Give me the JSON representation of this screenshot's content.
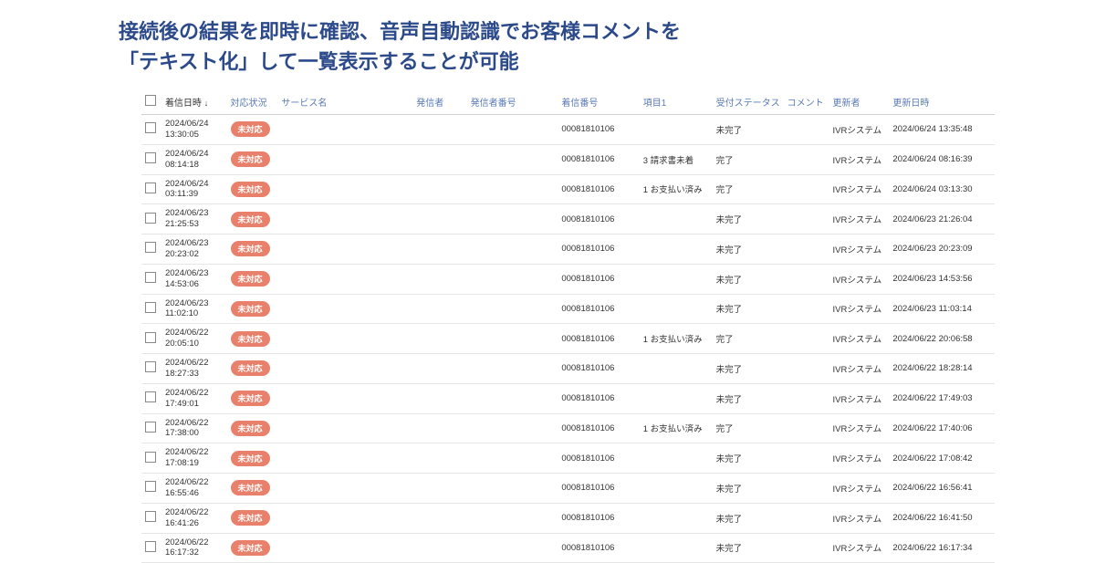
{
  "heading_line1": "接続後の結果を即時に確認、音声自動認識でお客様コメントを",
  "heading_line2": "「テキスト化」して一覧表示することが可能",
  "columns": {
    "received": "着信日時",
    "sort_glyph": "↓",
    "status": "対応状況",
    "service": "サービス名",
    "sender": "発信者",
    "sender_num": "発信者番号",
    "inbound_num": "着信番号",
    "item1": "項目1",
    "reception": "受付ステータス",
    "comment": "コメント",
    "updater": "更新者",
    "updated": "更新日時"
  },
  "badge_label": "未対応",
  "inbound_value": "00081810106",
  "updater_value": "IVRシステム",
  "rows": [
    {
      "dt1": "2024/06/24",
      "dt2": "13:30:05",
      "item1": "",
      "recept": "未完了",
      "upd": "2024/06/24 13:35:48"
    },
    {
      "dt1": "2024/06/24",
      "dt2": "08:14:18",
      "item1": "3 請求書未着",
      "recept": "完了",
      "upd": "2024/06/24 08:16:39"
    },
    {
      "dt1": "2024/06/24",
      "dt2": "03:11:39",
      "item1": "1 お支払い済み",
      "recept": "完了",
      "upd": "2024/06/24 03:13:30"
    },
    {
      "dt1": "2024/06/23",
      "dt2": "21:25:53",
      "item1": "",
      "recept": "未完了",
      "upd": "2024/06/23 21:26:04"
    },
    {
      "dt1": "2024/06/23",
      "dt2": "20:23:02",
      "item1": "",
      "recept": "未完了",
      "upd": "2024/06/23 20:23:09"
    },
    {
      "dt1": "2024/06/23",
      "dt2": "14:53:06",
      "item1": "",
      "recept": "未完了",
      "upd": "2024/06/23 14:53:56"
    },
    {
      "dt1": "2024/06/23",
      "dt2": "11:02:10",
      "item1": "",
      "recept": "未完了",
      "upd": "2024/06/23 11:03:14"
    },
    {
      "dt1": "2024/06/22",
      "dt2": "20:05:10",
      "item1": "1 お支払い済み",
      "recept": "完了",
      "upd": "2024/06/22 20:06:58"
    },
    {
      "dt1": "2024/06/22",
      "dt2": "18:27:33",
      "item1": "",
      "recept": "未完了",
      "upd": "2024/06/22 18:28:14"
    },
    {
      "dt1": "2024/06/22",
      "dt2": "17:49:01",
      "item1": "",
      "recept": "未完了",
      "upd": "2024/06/22 17:49:03"
    },
    {
      "dt1": "2024/06/22",
      "dt2": "17:38:00",
      "item1": "1 お支払い済み",
      "recept": "完了",
      "upd": "2024/06/22 17:40:06"
    },
    {
      "dt1": "2024/06/22",
      "dt2": "17:08:19",
      "item1": "",
      "recept": "未完了",
      "upd": "2024/06/22 17:08:42"
    },
    {
      "dt1": "2024/06/22",
      "dt2": "16:55:46",
      "item1": "",
      "recept": "未完了",
      "upd": "2024/06/22 16:56:41"
    },
    {
      "dt1": "2024/06/22",
      "dt2": "16:41:26",
      "item1": "",
      "recept": "未完了",
      "upd": "2024/06/22 16:41:50"
    },
    {
      "dt1": "2024/06/22",
      "dt2": "16:17:32",
      "item1": "",
      "recept": "未完了",
      "upd": "2024/06/22 16:17:34"
    }
  ],
  "colors": {
    "heading": "#2c4a8a",
    "th_link": "#5a7ab8",
    "badge_bg": "#e8806b",
    "border": "#e5e5e5"
  }
}
